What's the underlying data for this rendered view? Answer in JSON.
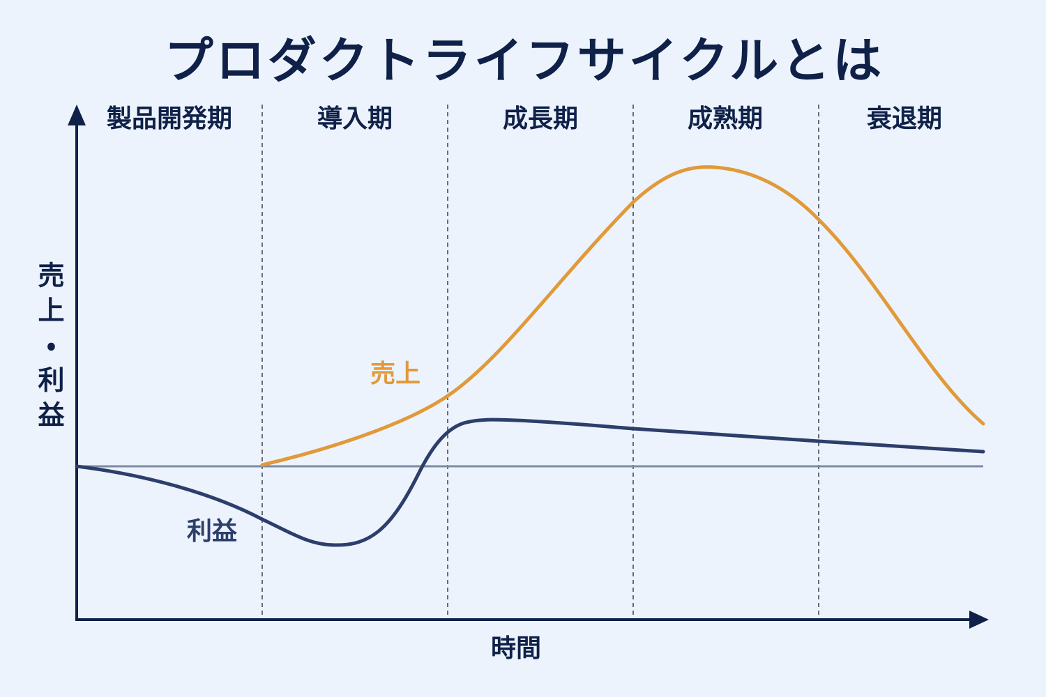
{
  "title": "プロダクトライフサイクルとは",
  "y_axis_label": "売上・利益",
  "x_axis_label": "時間",
  "phases": [
    "製品開発期",
    "導入期",
    "成長期",
    "成熟期",
    "衰退期"
  ],
  "curves": [
    {
      "label": "売上"
    },
    {
      "label": "利益"
    }
  ]
}
